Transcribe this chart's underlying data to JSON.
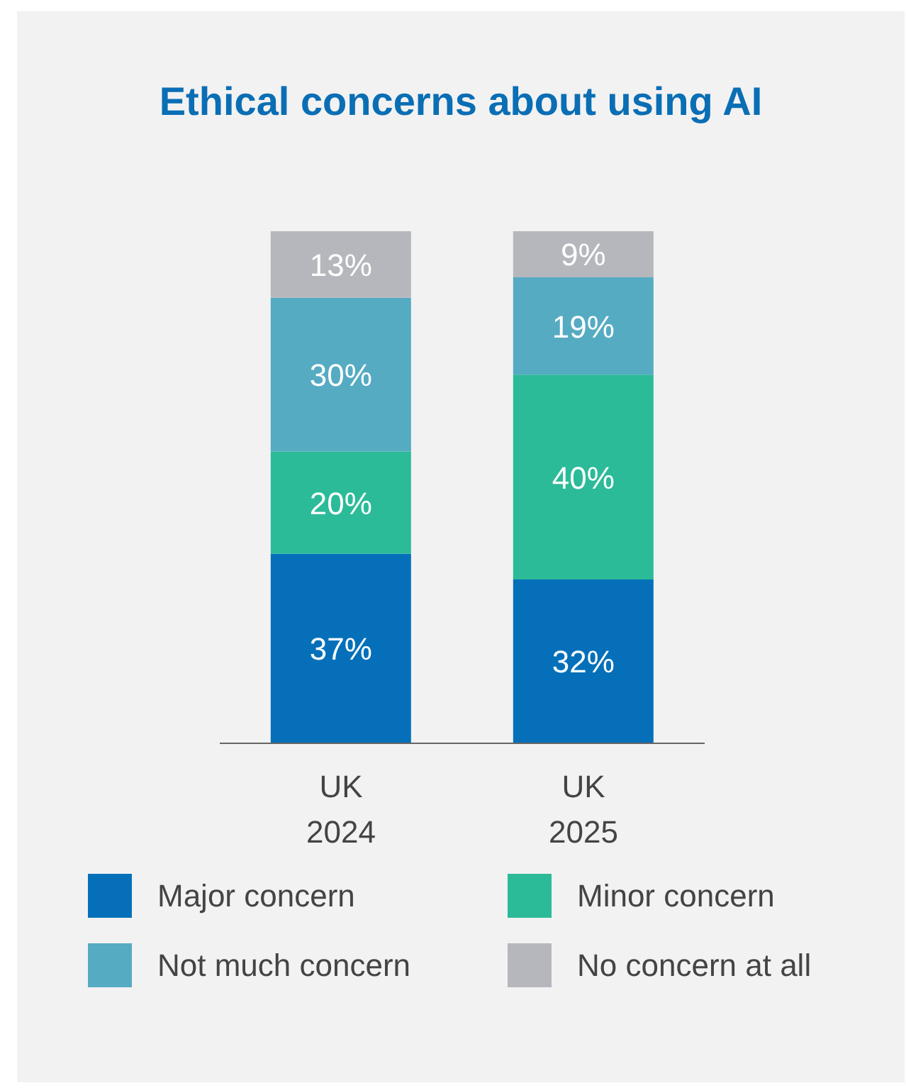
{
  "chart_data": {
    "type": "bar",
    "title": "Ethical concerns about using AI",
    "categories": [
      "UK 2024",
      "UK 2025"
    ],
    "stacked": true,
    "legend": "bottom",
    "series": [
      {
        "name": "Major concern",
        "color": "#0570b9",
        "values": [
          37,
          32
        ],
        "value_labels": [
          "37%",
          "32%"
        ]
      },
      {
        "name": "Minor concern",
        "color": "#2bbb98",
        "values": [
          20,
          40
        ],
        "value_labels": [
          "20%",
          "40%"
        ]
      },
      {
        "name": "Not much concern",
        "color": "#55abc2",
        "values": [
          30,
          19
        ],
        "value_labels": [
          "30%",
          "19%"
        ]
      },
      {
        "name": "No concern at all",
        "color": "#b5b7bc",
        "values": [
          13,
          9
        ],
        "value_labels": [
          "13%",
          "9%"
        ]
      }
    ]
  }
}
